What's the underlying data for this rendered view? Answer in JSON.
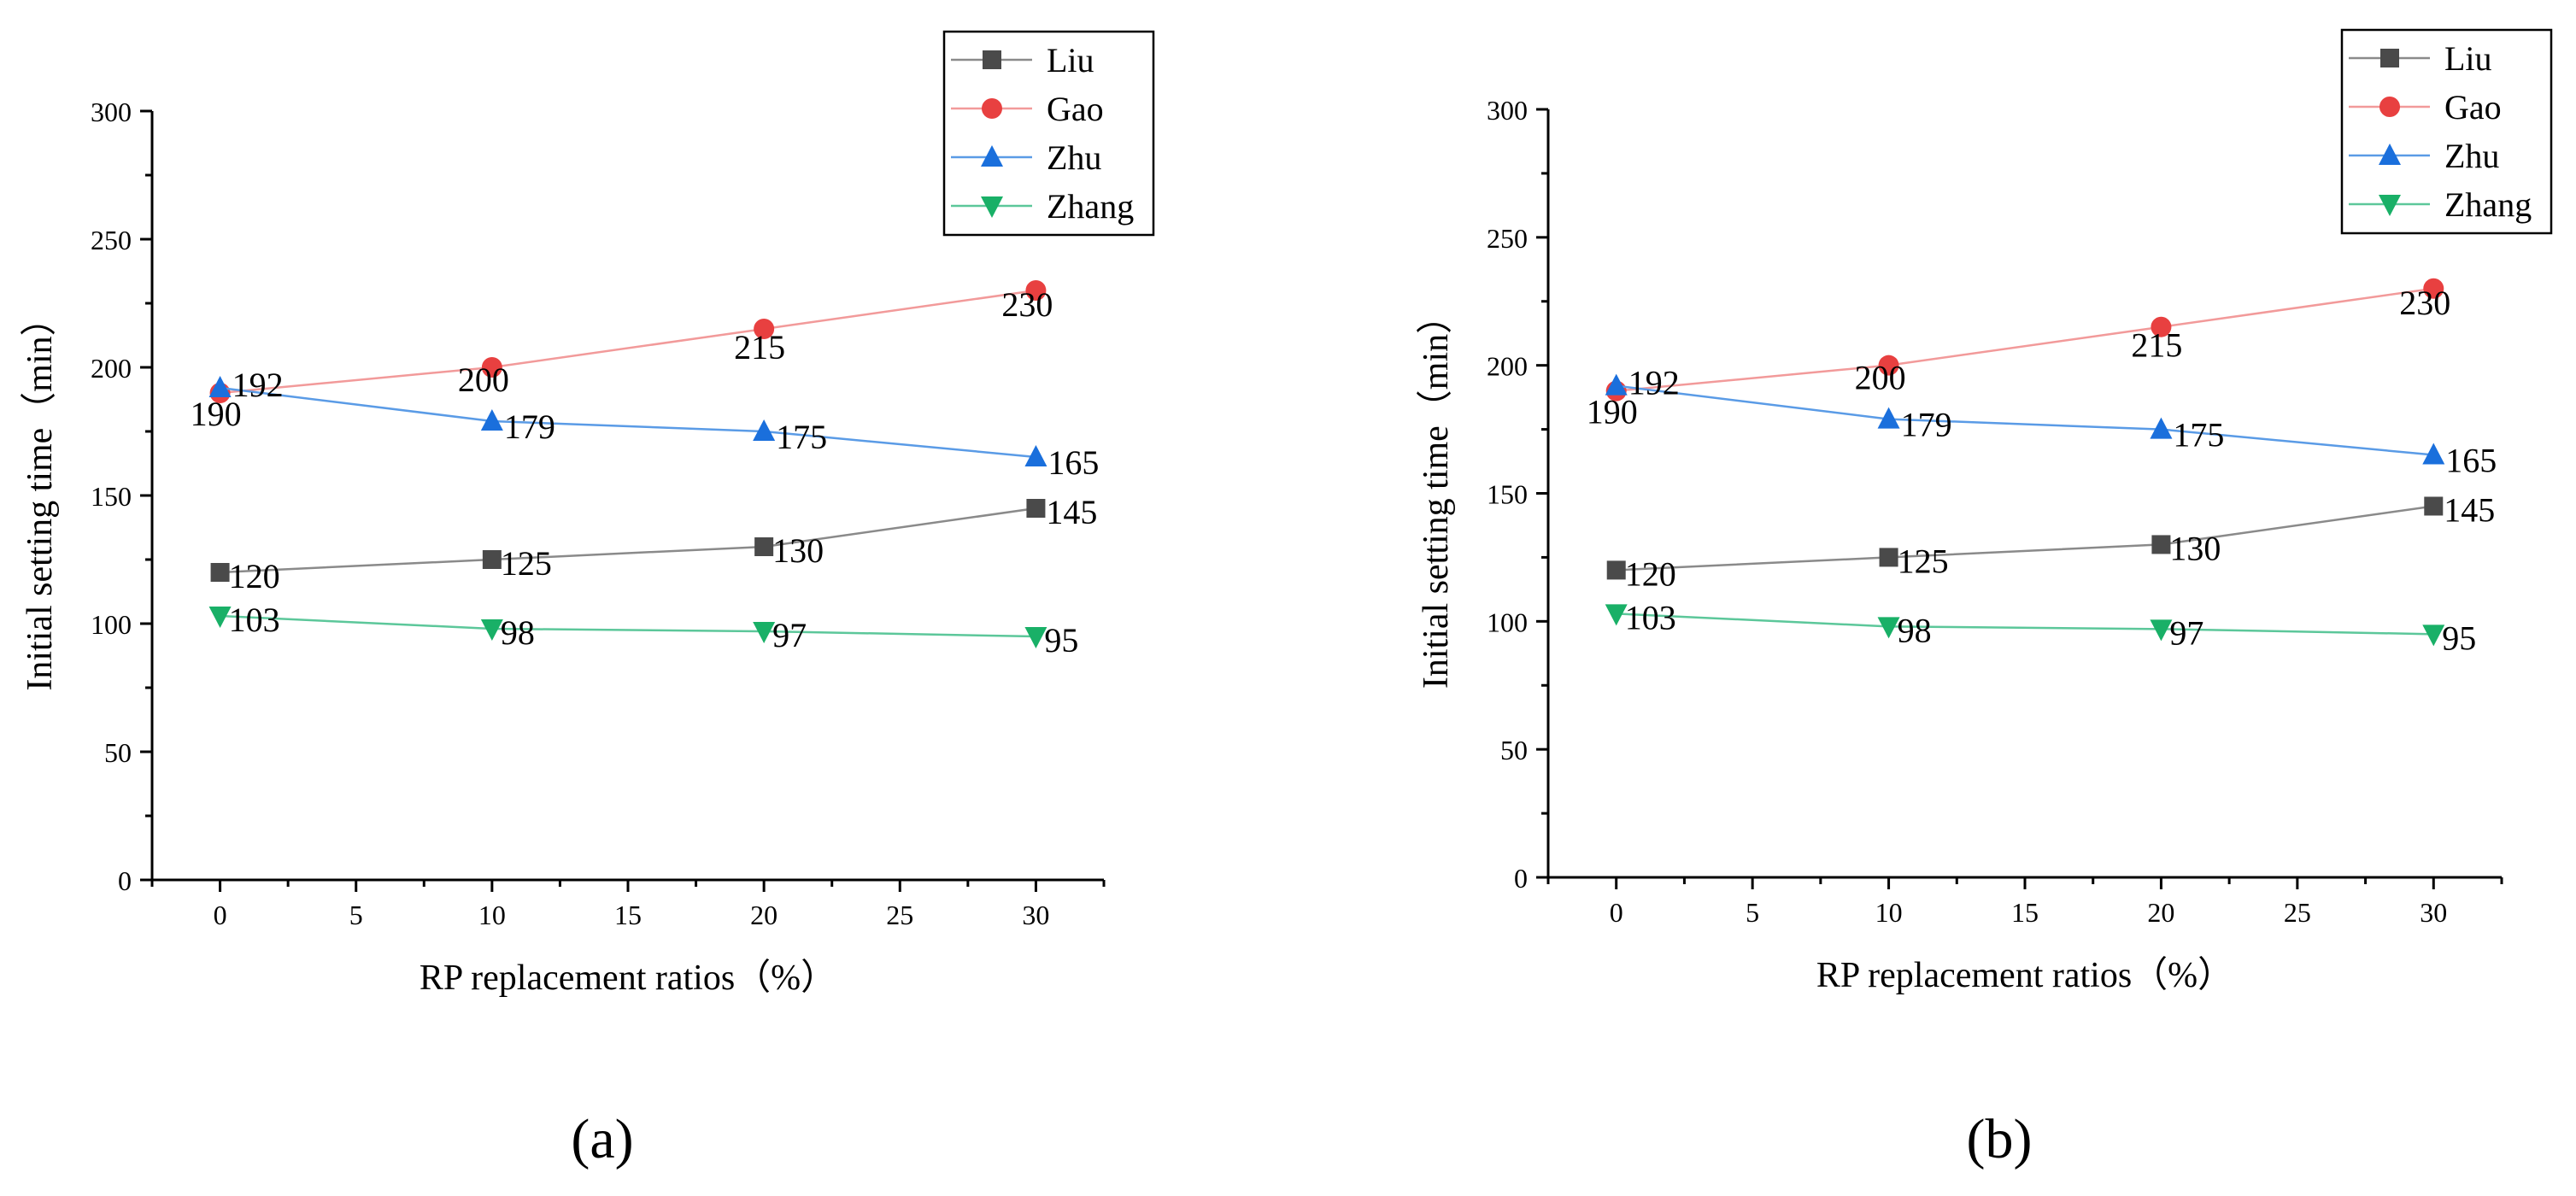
{
  "colors": {
    "Liu": "#4a4a4a",
    "Gao": "#e84040",
    "Zhu": "#1a6fdc",
    "Zhang": "#19b067",
    "axis": "#000000",
    "line_Liu": "#8a8a8a",
    "line_Gao": "#f29a9a",
    "line_Zhu": "#5a9be6",
    "line_Zhang": "#5cc79a"
  },
  "chart_data": [
    {
      "type": "line",
      "panel_label": "(a)",
      "title": "",
      "xlabel": "RP replacement ratios（%）",
      "ylabel": "Initial setting time（min）",
      "xlim": [
        -2.5,
        32.5
      ],
      "ylim": [
        0,
        300
      ],
      "xticks": [
        0,
        5,
        10,
        15,
        20,
        25,
        30
      ],
      "yticks": [
        0,
        50,
        100,
        150,
        200,
        250,
        300
      ],
      "x": [
        0,
        10,
        20,
        30
      ],
      "legend_position": "top-right",
      "grid": false,
      "series": [
        {
          "name": "Liu",
          "marker": "square",
          "values": [
            120,
            125,
            130,
            145
          ],
          "labels": [
            "120",
            "125",
            "130",
            "145"
          ]
        },
        {
          "name": "Gao",
          "marker": "circle",
          "values": [
            190,
            200,
            215,
            230
          ],
          "labels": [
            "190",
            "200",
            "215",
            "230"
          ]
        },
        {
          "name": "Zhu",
          "marker": "triangle-up",
          "values": [
            192,
            179,
            175,
            165
          ],
          "labels": [
            "192",
            "179",
            "175",
            "165"
          ]
        },
        {
          "name": "Zhang",
          "marker": "triangle-down",
          "values": [
            103,
            98,
            97,
            95
          ],
          "labels": [
            "103",
            "98",
            "97",
            "95"
          ]
        }
      ]
    },
    {
      "type": "line",
      "panel_label": "(b)",
      "title": "",
      "xlabel": "RP replacement ratios（%）",
      "ylabel": "Initial setting time（min）",
      "xlim": [
        -2.5,
        32.5
      ],
      "ylim": [
        0,
        300
      ],
      "xticks": [
        0,
        5,
        10,
        15,
        20,
        25,
        30
      ],
      "yticks": [
        0,
        50,
        100,
        150,
        200,
        250,
        300
      ],
      "x": [
        0,
        10,
        20,
        30
      ],
      "legend_position": "top-right",
      "grid": false,
      "series": [
        {
          "name": "Liu",
          "marker": "square",
          "values": [
            120,
            125,
            130,
            145
          ],
          "labels": [
            "120",
            "125",
            "130",
            "145"
          ]
        },
        {
          "name": "Gao",
          "marker": "circle",
          "values": [
            190,
            200,
            215,
            230
          ],
          "labels": [
            "190",
            "200",
            "215",
            "230"
          ]
        },
        {
          "name": "Zhu",
          "marker": "triangle-up",
          "values": [
            192,
            179,
            175,
            165
          ],
          "labels": [
            "192",
            "179",
            "175",
            "165"
          ]
        },
        {
          "name": "Zhang",
          "marker": "triangle-down",
          "values": [
            103,
            98,
            97,
            95
          ],
          "labels": [
            "103",
            "98",
            "97",
            "95"
          ]
        }
      ]
    }
  ]
}
